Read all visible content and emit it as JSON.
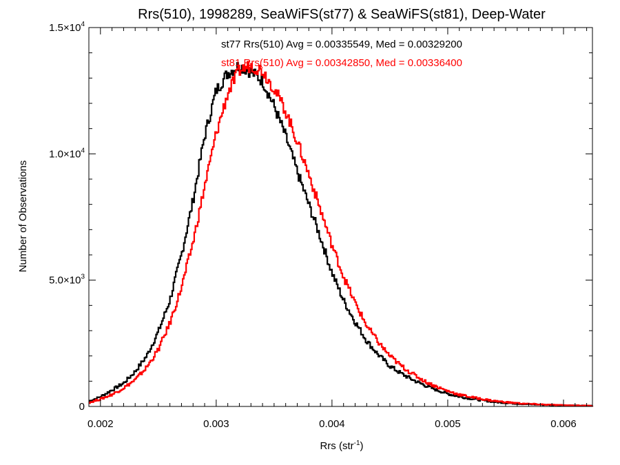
{
  "chart_data": {
    "type": "line",
    "title": "Rrs(510), 1998289, SeaWiFS(st77) & SeaWiFS(st81), Deep-Water",
    "xlabel": "Rrs (str",
    "xlabel_sup": "-1",
    "xlabel_end": ")",
    "ylabel": "Number of Observations",
    "xlim": [
      0.0019,
      0.00625
    ],
    "ylim": [
      0,
      15000
    ],
    "x_ticks": [
      {
        "value": 0.002,
        "label": "0.002"
      },
      {
        "value": 0.003,
        "label": "0.003"
      },
      {
        "value": 0.004,
        "label": "0.004"
      },
      {
        "value": 0.005,
        "label": "0.005"
      },
      {
        "value": 0.006,
        "label": "0.006"
      }
    ],
    "y_ticks": [
      {
        "value": 0,
        "mant": "0",
        "exp": ""
      },
      {
        "value": 5000,
        "mant": "5.0×10",
        "exp": "3"
      },
      {
        "value": 10000,
        "mant": "1.0×10",
        "exp": "4"
      },
      {
        "value": 15000,
        "mant": "1.5×10",
        "exp": "4"
      }
    ],
    "x_minor_ticks": [
      0.0019,
      0.0021,
      0.0022,
      0.0023,
      0.0024,
      0.0025,
      0.0026,
      0.0027,
      0.0028,
      0.0029,
      0.0031,
      0.0032,
      0.0033,
      0.0034,
      0.0035,
      0.0036,
      0.0037,
      0.0038,
      0.0039,
      0.0041,
      0.0042,
      0.0043,
      0.0044,
      0.0045,
      0.0046,
      0.0047,
      0.0048,
      0.0049,
      0.0051,
      0.0052,
      0.0053,
      0.0054,
      0.0055,
      0.0056,
      0.0057,
      0.0058,
      0.0059,
      0.0061,
      0.0062
    ],
    "y_minor_ticks": [
      1000,
      2000,
      3000,
      4000,
      6000,
      7000,
      8000,
      9000,
      11000,
      12000,
      13000,
      14000
    ],
    "annotations": [
      {
        "text": "st77 Rrs(510) Avg = 0.00335549, Med = 0.00329200",
        "color": "#000000"
      },
      {
        "text": "st81 Rrs(510) Avg = 0.00342850, Med = 0.00336400",
        "color": "#ff0000"
      }
    ],
    "series": [
      {
        "color": "#000000",
        "x": [
          0.0019,
          0.002,
          0.0021,
          0.0022,
          0.0023,
          0.0024,
          0.0025,
          0.0026,
          0.0027,
          0.0028,
          0.0029,
          0.003,
          0.0031,
          0.0032,
          0.0033,
          0.0034,
          0.0035,
          0.0036,
          0.0037,
          0.0038,
          0.0039,
          0.004,
          0.0041,
          0.0042,
          0.0043,
          0.0044,
          0.0045,
          0.0046,
          0.0047,
          0.0048,
          0.0049,
          0.005,
          0.0051,
          0.0052,
          0.0053,
          0.0054,
          0.0055,
          0.0056,
          0.0057,
          0.0058,
          0.0059,
          0.006,
          0.0061,
          0.0062
        ],
        "y": [
          200,
          380,
          650,
          920,
          1380,
          2000,
          2950,
          4200,
          6000,
          8150,
          10700,
          12500,
          13200,
          13500,
          13250,
          12900,
          11900,
          10700,
          9300,
          8000,
          6700,
          5300,
          4200,
          3350,
          2600,
          2050,
          1600,
          1300,
          1050,
          840,
          660,
          500,
          390,
          310,
          240,
          180,
          140,
          110,
          85,
          70,
          55,
          45,
          35,
          28
        ]
      },
      {
        "color": "#ff0000",
        "x": [
          0.0019,
          0.002,
          0.0021,
          0.0022,
          0.0023,
          0.0024,
          0.0025,
          0.0026,
          0.0027,
          0.0028,
          0.0029,
          0.003,
          0.0031,
          0.0032,
          0.0033,
          0.0034,
          0.0035,
          0.0036,
          0.0037,
          0.0038,
          0.0039,
          0.004,
          0.0041,
          0.0042,
          0.0043,
          0.0044,
          0.0045,
          0.0046,
          0.0047,
          0.0048,
          0.0049,
          0.005,
          0.0051,
          0.0052,
          0.0053,
          0.0054,
          0.0055,
          0.0056,
          0.0057,
          0.0058,
          0.0059,
          0.006,
          0.0061,
          0.0062
        ],
        "y": [
          150,
          290,
          470,
          730,
          1050,
          1550,
          2250,
          3300,
          4700,
          6500,
          8700,
          10800,
          12400,
          13300,
          13500,
          13300,
          12600,
          11700,
          10500,
          9200,
          7800,
          6400,
          5150,
          4100,
          3200,
          2550,
          2000,
          1600,
          1280,
          1000,
          790,
          610,
          470,
          370,
          290,
          220,
          170,
          130,
          100,
          80,
          62,
          48,
          38,
          30
        ]
      }
    ]
  }
}
